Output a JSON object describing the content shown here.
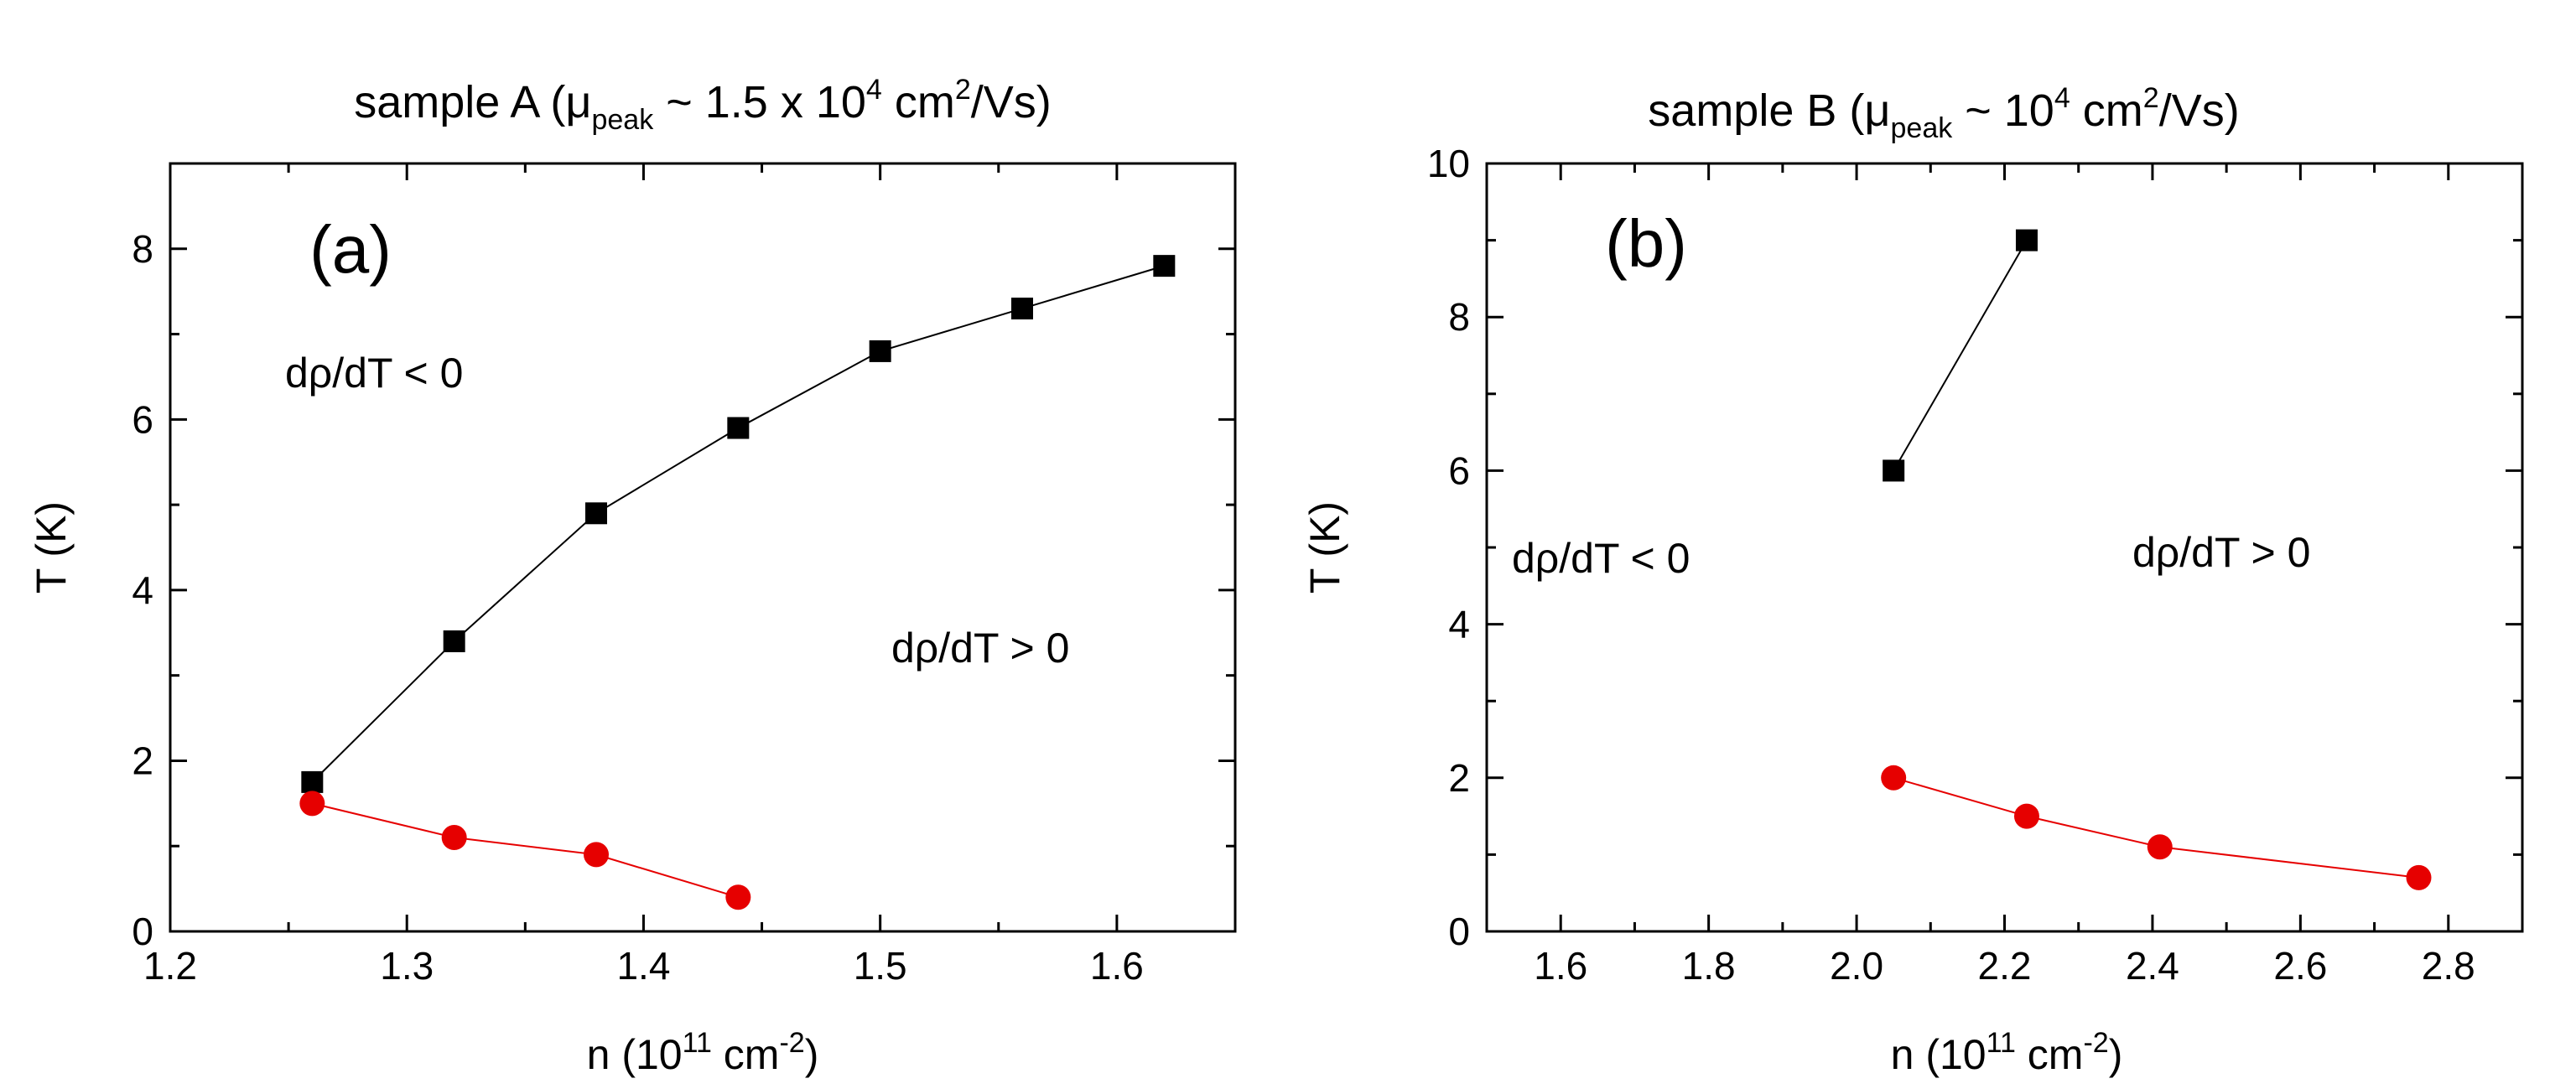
{
  "chart_data": [
    {
      "type": "scatter",
      "panel_label": "(a)",
      "title": {
        "main": "sample A (",
        "mu": "μ",
        "mu_sub": "peak",
        "mid": " ~ 1.5 x 10",
        "exp": "4",
        "unit": " cm",
        "unit_exp": "2",
        "end": "/Vs)"
      },
      "xlabel": {
        "main": "n (10",
        "exp": "11",
        "unit": " cm",
        "unit_exp": "-2",
        "end": ")"
      },
      "ylabel": "T (K)",
      "xlim": [
        1.2,
        1.65
      ],
      "ylim": [
        0,
        9
      ],
      "xticks": [
        "1.2",
        "1.3",
        "1.4",
        "1.5",
        "1.6"
      ],
      "yticks": [
        "0",
        "2",
        "4",
        "6",
        "8"
      ],
      "region_labels": [
        {
          "text": "dρ/dT < 0",
          "at": "upper-left"
        },
        {
          "text": "dρ/dT > 0",
          "at": "lower-right"
        }
      ],
      "series": [
        {
          "marker": "square",
          "color": "#000000",
          "x": [
            1.26,
            1.32,
            1.38,
            1.44,
            1.5,
            1.56,
            1.62
          ],
          "y": [
            1.75,
            3.4,
            4.9,
            5.9,
            6.8,
            7.3,
            7.8
          ]
        },
        {
          "marker": "circle",
          "color": "#e60000",
          "x": [
            1.26,
            1.32,
            1.38,
            1.44
          ],
          "y": [
            1.5,
            1.1,
            0.9,
            0.4
          ]
        }
      ]
    },
    {
      "type": "scatter",
      "panel_label": "(b)",
      "title": {
        "main": "sample B (",
        "mu": "μ",
        "mu_sub": "peak",
        "mid": " ~ 10",
        "exp": "4",
        "unit": " cm",
        "unit_exp": "2",
        "end": "/Vs)"
      },
      "xlabel": {
        "main": "n (10",
        "exp": "11",
        "unit": " cm",
        "unit_exp": "-2",
        "end": ")"
      },
      "ylabel": "T (K)",
      "xlim": [
        1.5,
        2.9
      ],
      "ylim": [
        0,
        10
      ],
      "xticks": [
        "1.6",
        "1.8",
        "2.0",
        "2.2",
        "2.4",
        "2.6",
        "2.8"
      ],
      "yticks": [
        "0",
        "2",
        "4",
        "6",
        "8",
        "10"
      ],
      "region_labels": [
        {
          "text": "dρ/dT < 0",
          "at": "middle-left"
        },
        {
          "text": "dρ/dT > 0",
          "at": "middle-right"
        }
      ],
      "series": [
        {
          "marker": "square",
          "color": "#000000",
          "x": [
            2.05,
            2.23
          ],
          "y": [
            6.0,
            9.0
          ]
        },
        {
          "marker": "circle",
          "color": "#e60000",
          "x": [
            2.05,
            2.23,
            2.41,
            2.76
          ],
          "y": [
            2.0,
            1.5,
            1.1,
            0.7
          ]
        }
      ]
    }
  ]
}
